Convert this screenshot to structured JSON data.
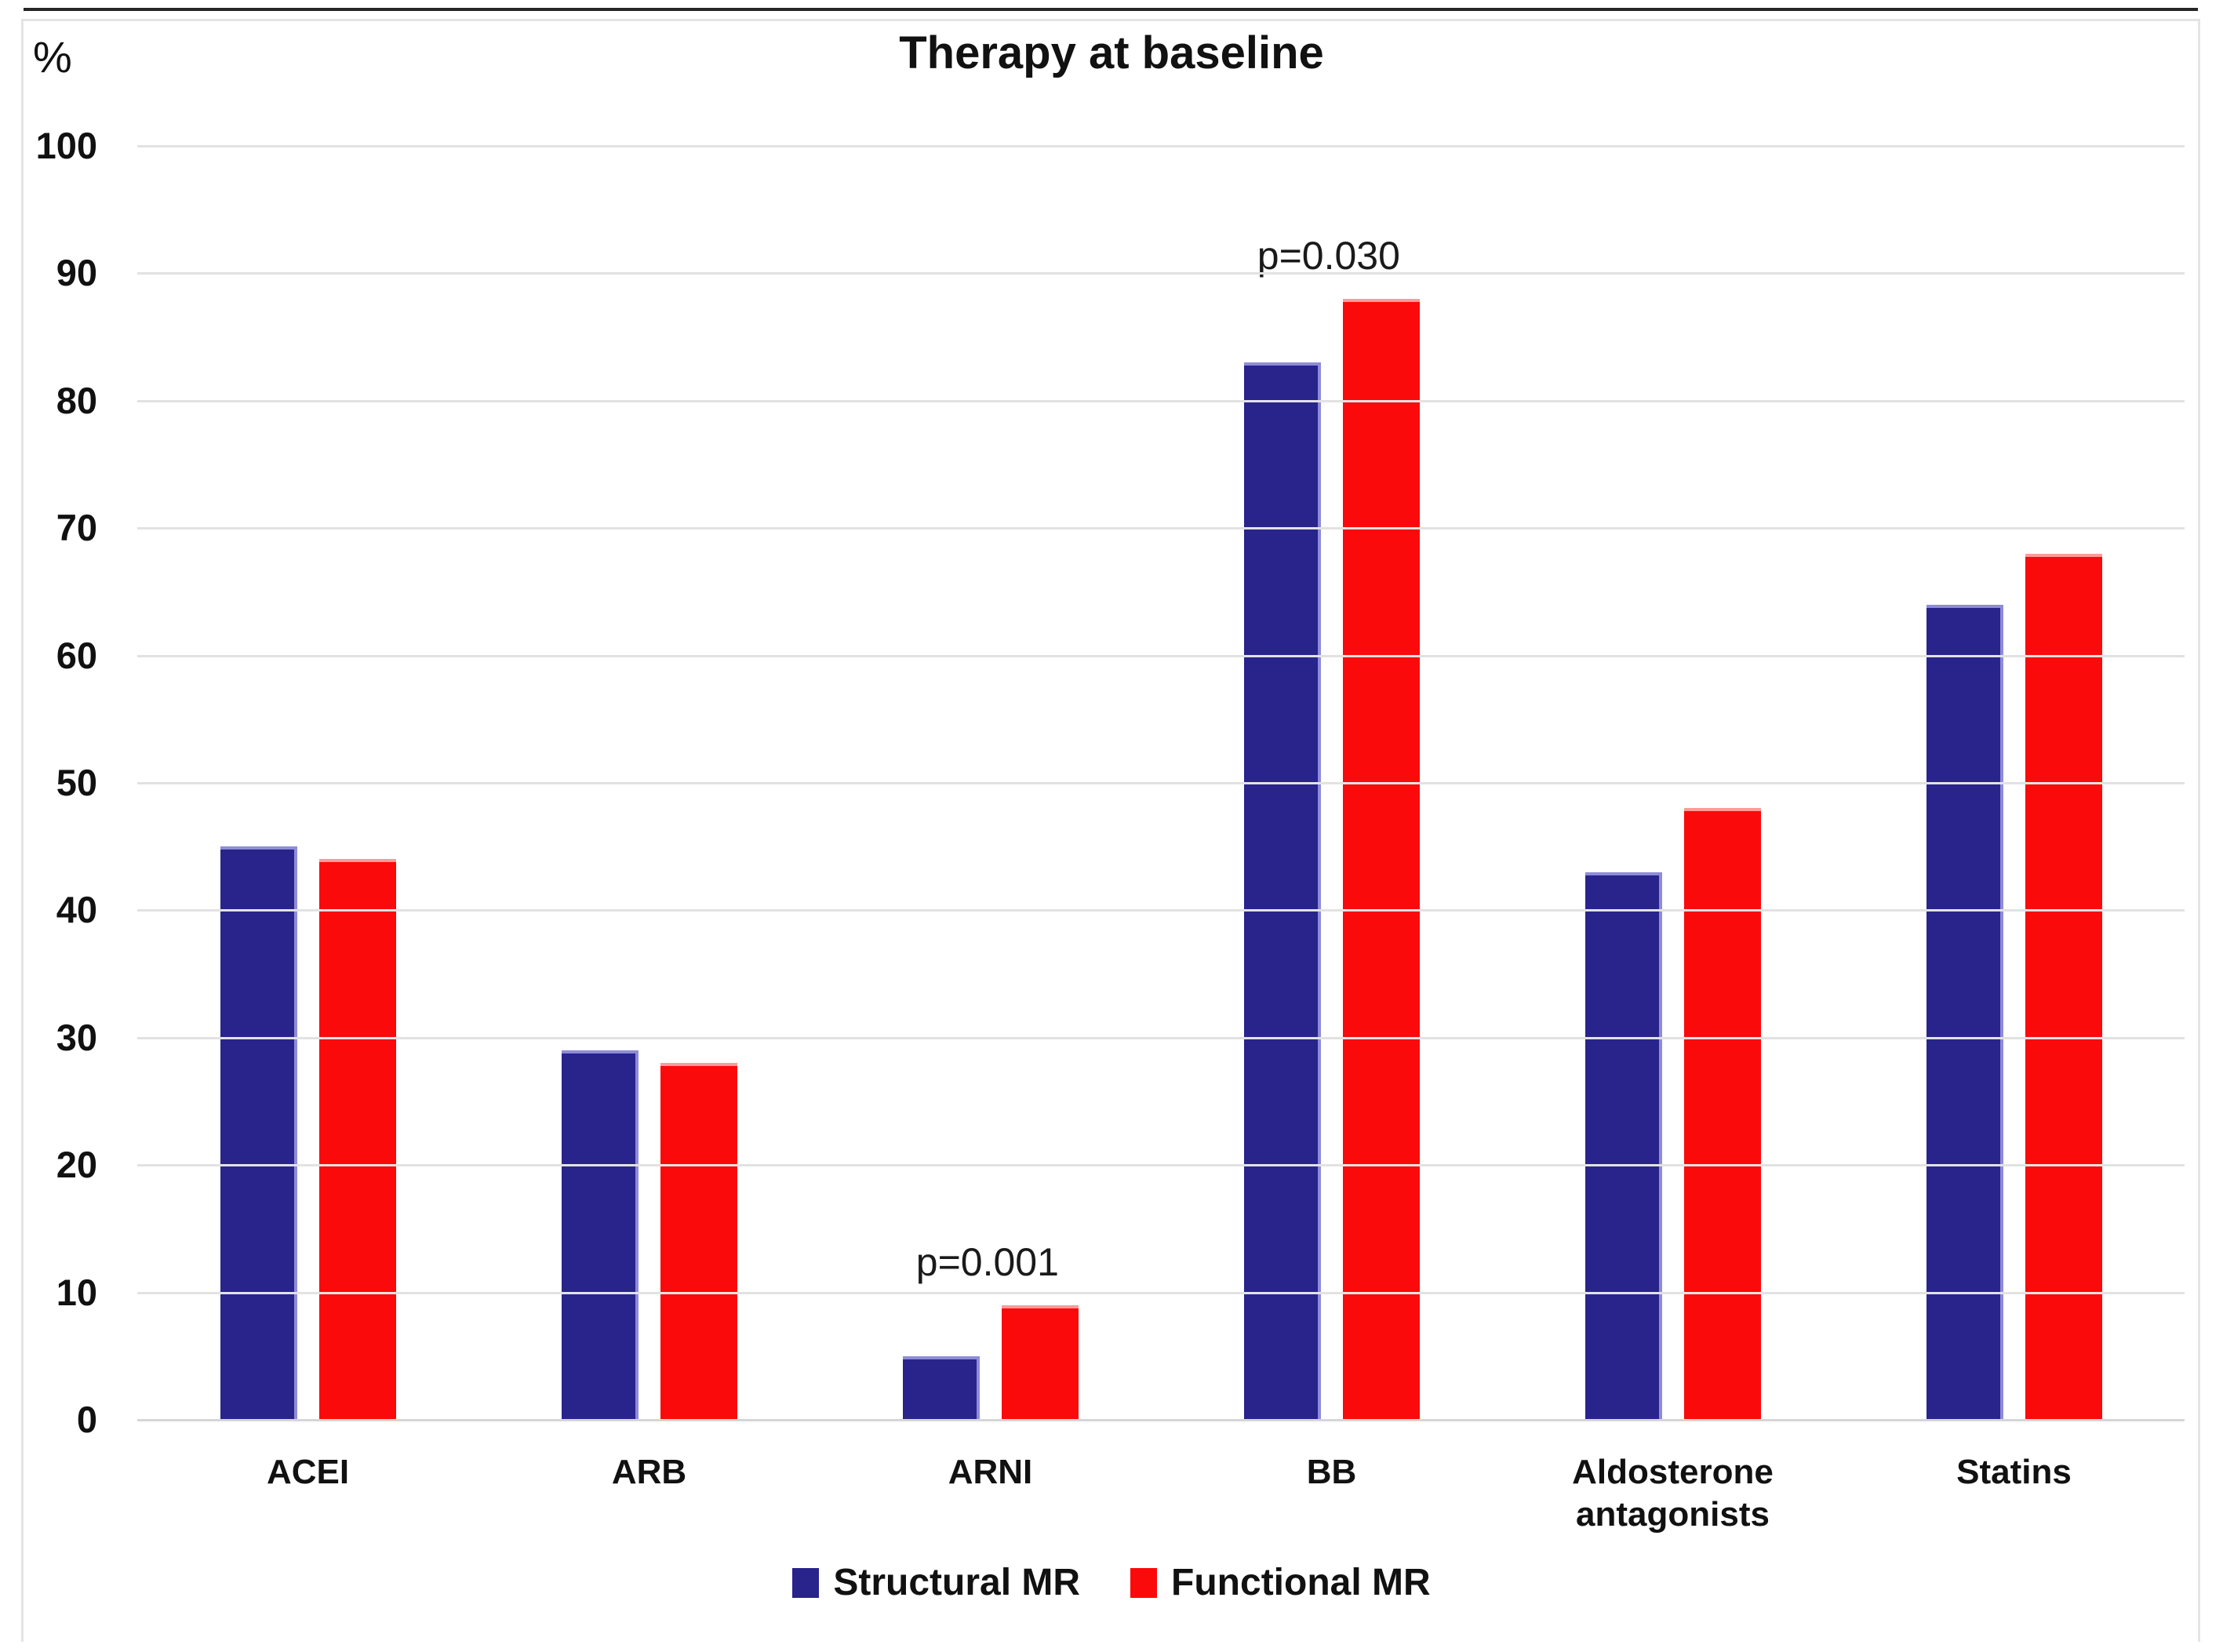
{
  "title": "Therapy at baseline",
  "y_axis_unit_label": "%",
  "colors": {
    "structural_mr_blue": "#28248c",
    "functional_mr_red": "#fa0a0a",
    "gridline_gray": "#e2e2e2",
    "text_black": "#111111"
  },
  "chart_data": {
    "type": "bar",
    "title": "Therapy at baseline",
    "categories": [
      "ACEI",
      "ARB",
      "ARNI",
      "BB",
      "Aldosterone antagonists",
      "Statins"
    ],
    "series": [
      {
        "name": "Structural MR",
        "color": "#28248c",
        "values": [
          45,
          29,
          5,
          83,
          43,
          64
        ]
      },
      {
        "name": "Functional MR",
        "color": "#fa0a0a",
        "values": [
          44,
          28,
          9,
          88,
          48,
          68
        ]
      }
    ],
    "annotations": [
      {
        "category": "ARNI",
        "text": "p=0.001",
        "above_series": "Functional MR"
      },
      {
        "category": "BB",
        "text": "p=0.030",
        "above_series": "Functional MR"
      }
    ],
    "xlabel": "",
    "ylabel": "%",
    "ylim": [
      0,
      100
    ],
    "yticks": [
      0,
      10,
      20,
      30,
      40,
      50,
      60,
      70,
      80,
      90,
      100
    ],
    "grid": true,
    "legend_position": "bottom"
  }
}
